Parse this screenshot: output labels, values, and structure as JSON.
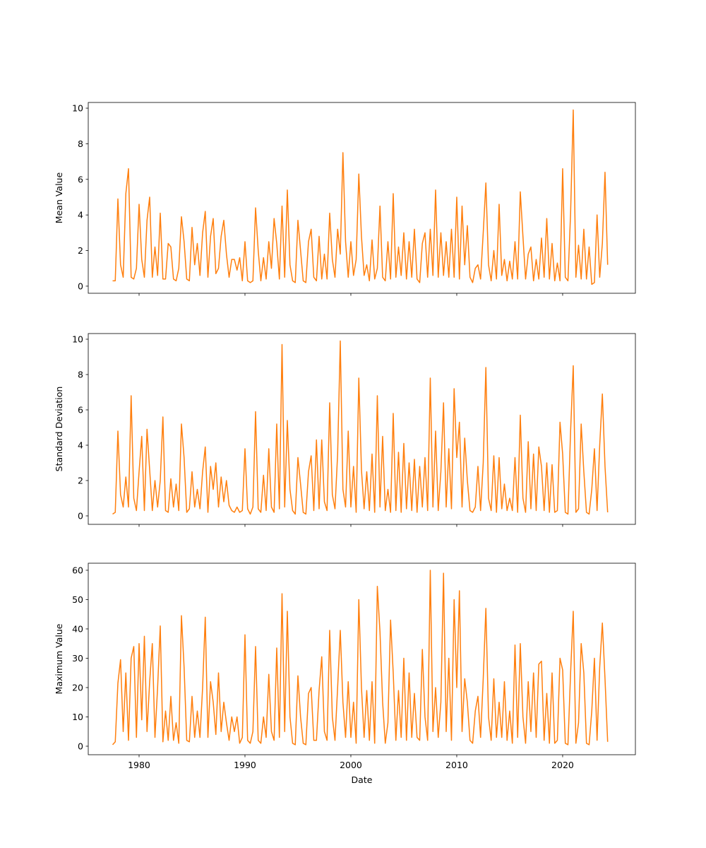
{
  "chart_data": [
    {
      "type": "line",
      "ylabel": "Mean Value",
      "x": [
        1977.5,
        1977.75,
        1978,
        1978.25,
        1978.5,
        1978.75,
        1979,
        1979.25,
        1979.5,
        1979.75,
        1980,
        1980.25,
        1980.5,
        1980.75,
        1981,
        1981.25,
        1981.5,
        1981.75,
        1982,
        1982.25,
        1982.5,
        1982.75,
        1983,
        1983.25,
        1983.5,
        1983.75,
        1984,
        1984.25,
        1984.5,
        1984.75,
        1985,
        1985.25,
        1985.5,
        1985.75,
        1986,
        1986.25,
        1986.5,
        1986.75,
        1987,
        1987.25,
        1987.5,
        1987.75,
        1988,
        1988.25,
        1988.5,
        1988.75,
        1989,
        1989.25,
        1989.5,
        1989.75,
        1990,
        1990.25,
        1990.5,
        1990.75,
        1991,
        1991.25,
        1991.5,
        1991.75,
        1992,
        1992.25,
        1992.5,
        1992.75,
        1993,
        1993.25,
        1993.5,
        1993.75,
        1994,
        1994.25,
        1994.5,
        1994.75,
        1995,
        1995.25,
        1995.5,
        1995.75,
        1996,
        1996.25,
        1996.5,
        1996.75,
        1997,
        1997.25,
        1997.5,
        1997.75,
        1998,
        1998.25,
        1998.5,
        1998.75,
        1999,
        1999.25,
        1999.5,
        1999.75,
        2000,
        2000.25,
        2000.5,
        2000.75,
        2001,
        2001.25,
        2001.5,
        2001.75,
        2002,
        2002.25,
        2002.5,
        2002.75,
        2003,
        2003.25,
        2003.5,
        2003.75,
        2004,
        2004.25,
        2004.5,
        2004.75,
        2005,
        2005.25,
        2005.5,
        2005.75,
        2006,
        2006.25,
        2006.5,
        2006.75,
        2007,
        2007.25,
        2007.5,
        2007.75,
        2008,
        2008.25,
        2008.5,
        2008.75,
        2009,
        2009.25,
        2009.5,
        2009.75,
        2010,
        2010.25,
        2010.5,
        2010.75,
        2011,
        2011.25,
        2011.5,
        2011.75,
        2012,
        2012.25,
        2012.5,
        2012.75,
        2013,
        2013.25,
        2013.5,
        2013.75,
        2014,
        2014.25,
        2014.5,
        2014.75,
        2015,
        2015.25,
        2015.5,
        2015.75,
        2016,
        2016.25,
        2016.5,
        2016.75,
        2017,
        2017.25,
        2017.5,
        2017.75,
        2018,
        2018.25,
        2018.5,
        2018.75,
        2019,
        2019.25,
        2019.5,
        2019.75,
        2020,
        2020.25,
        2020.5,
        2020.75,
        2021,
        2021.25,
        2021.5,
        2021.75,
        2022,
        2022.25,
        2022.5,
        2022.75,
        2023,
        2023.25,
        2023.5,
        2023.75,
        2024,
        2024.25
      ],
      "values": [
        0.3,
        0.3,
        4.9,
        1.2,
        0.5,
        5.2,
        6.6,
        0.5,
        0.4,
        1.0,
        4.6,
        1.5,
        0.5,
        3.7,
        5.0,
        0.5,
        2.2,
        0.6,
        4.1,
        0.4,
        0.4,
        2.4,
        2.2,
        0.4,
        0.3,
        1.0,
        3.9,
        2.5,
        0.4,
        0.3,
        3.3,
        1.2,
        2.4,
        0.6,
        3.0,
        4.2,
        0.5,
        2.8,
        3.8,
        0.7,
        1.0,
        2.8,
        3.7,
        1.8,
        0.5,
        1.5,
        1.5,
        0.9,
        1.6,
        0.3,
        2.5,
        0.3,
        0.2,
        0.3,
        4.4,
        2.0,
        0.3,
        1.6,
        0.4,
        2.5,
        1.0,
        3.8,
        2.4,
        0.4,
        4.5,
        0.5,
        5.4,
        1.2,
        0.3,
        0.2,
        3.7,
        2.0,
        0.3,
        0.2,
        2.5,
        3.2,
        0.5,
        0.3,
        2.8,
        0.4,
        1.8,
        0.4,
        4.1,
        1.5,
        0.5,
        3.2,
        1.8,
        7.5,
        2.5,
        0.5,
        2.5,
        0.6,
        1.5,
        6.3,
        2.8,
        0.6,
        1.2,
        0.3,
        2.6,
        0.4,
        1.0,
        4.5,
        0.5,
        0.3,
        2.5,
        0.4,
        5.2,
        0.5,
        2.2,
        0.6,
        3.0,
        0.4,
        2.5,
        0.5,
        3.2,
        0.4,
        0.2,
        2.4,
        3.0,
        0.5,
        3.2,
        0.6,
        5.4,
        0.5,
        3.0,
        0.6,
        2.5,
        0.5,
        3.2,
        0.5,
        5.0,
        0.4,
        4.5,
        1.2,
        3.4,
        0.5,
        0.2,
        1.0,
        1.2,
        0.4,
        3.0,
        5.8,
        1.2,
        0.3,
        2.0,
        0.4,
        4.6,
        0.6,
        1.5,
        0.3,
        1.4,
        0.4,
        2.5,
        0.4,
        5.3,
        2.8,
        0.4,
        1.8,
        2.2,
        0.3,
        1.5,
        0.4,
        2.7,
        0.5,
        3.8,
        0.4,
        2.4,
        0.3,
        1.3,
        0.3,
        6.6,
        0.5,
        0.3,
        4.1,
        9.9,
        0.5,
        2.3,
        0.4,
        3.2,
        0.4,
        2.2,
        0.1,
        0.2,
        4.0,
        0.5,
        2.4,
        6.4,
        1.2
      ],
      "color": "#ff7f0e",
      "xlim": [
        1975.2,
        2026.87
      ],
      "xticks": [
        1980,
        1990,
        2000,
        2010,
        2020
      ],
      "ylim": [
        -0.4,
        10.32
      ],
      "yticks": [
        0,
        2,
        4,
        6,
        8,
        10
      ]
    },
    {
      "type": "line",
      "ylabel": "Standard Deviation",
      "x": [
        1977.5,
        1977.75,
        1978,
        1978.25,
        1978.5,
        1978.75,
        1979,
        1979.25,
        1979.5,
        1979.75,
        1980,
        1980.25,
        1980.5,
        1980.75,
        1981,
        1981.25,
        1981.5,
        1981.75,
        1982,
        1982.25,
        1982.5,
        1982.75,
        1983,
        1983.25,
        1983.5,
        1983.75,
        1984,
        1984.25,
        1984.5,
        1984.75,
        1985,
        1985.25,
        1985.5,
        1985.75,
        1986,
        1986.25,
        1986.5,
        1986.75,
        1987,
        1987.25,
        1987.5,
        1987.75,
        1988,
        1988.25,
        1988.5,
        1988.75,
        1989,
        1989.25,
        1989.5,
        1989.75,
        1990,
        1990.25,
        1990.5,
        1990.75,
        1991,
        1991.25,
        1991.5,
        1991.75,
        1992,
        1992.25,
        1992.5,
        1992.75,
        1993,
        1993.25,
        1993.5,
        1993.75,
        1994,
        1994.25,
        1994.5,
        1994.75,
        1995,
        1995.25,
        1995.5,
        1995.75,
        1996,
        1996.25,
        1996.5,
        1996.75,
        1997,
        1997.25,
        1997.5,
        1997.75,
        1998,
        1998.25,
        1998.5,
        1998.75,
        1999,
        1999.25,
        1999.5,
        1999.75,
        2000,
        2000.25,
        2000.5,
        2000.75,
        2001,
        2001.25,
        2001.5,
        2001.75,
        2002,
        2002.25,
        2002.5,
        2002.75,
        2003,
        2003.25,
        2003.5,
        2003.75,
        2004,
        2004.25,
        2004.5,
        2004.75,
        2005,
        2005.25,
        2005.5,
        2005.75,
        2006,
        2006.25,
        2006.5,
        2006.75,
        2007,
        2007.25,
        2007.5,
        2007.75,
        2008,
        2008.25,
        2008.5,
        2008.75,
        2009,
        2009.25,
        2009.5,
        2009.75,
        2010,
        2010.25,
        2010.5,
        2010.75,
        2011,
        2011.25,
        2011.5,
        2011.75,
        2012,
        2012.25,
        2012.5,
        2012.75,
        2013,
        2013.25,
        2013.5,
        2013.75,
        2014,
        2014.25,
        2014.5,
        2014.75,
        2015,
        2015.25,
        2015.5,
        2015.75,
        2016,
        2016.25,
        2016.5,
        2016.75,
        2017,
        2017.25,
        2017.5,
        2017.75,
        2018,
        2018.25,
        2018.5,
        2018.75,
        2019,
        2019.25,
        2019.5,
        2019.75,
        2020,
        2020.25,
        2020.5,
        2020.75,
        2021,
        2021.25,
        2021.5,
        2021.75,
        2022,
        2022.25,
        2022.5,
        2022.75,
        2023,
        2023.25,
        2023.5,
        2023.75,
        2024,
        2024.25
      ],
      "values": [
        0.1,
        0.2,
        4.8,
        1.2,
        0.5,
        2.2,
        0.5,
        6.8,
        1.0,
        0.3,
        2.5,
        4.5,
        0.3,
        4.9,
        2.6,
        0.3,
        2.0,
        0.5,
        2.0,
        5.6,
        0.3,
        0.2,
        2.1,
        0.5,
        1.8,
        0.3,
        5.2,
        3.3,
        0.2,
        0.4,
        2.5,
        0.5,
        1.5,
        0.4,
        2.5,
        3.9,
        0.2,
        2.8,
        1.5,
        3.0,
        0.5,
        2.2,
        0.8,
        2.0,
        0.6,
        0.3,
        0.2,
        0.5,
        0.2,
        0.3,
        3.8,
        0.4,
        0.1,
        0.5,
        5.9,
        0.4,
        0.2,
        2.3,
        0.3,
        3.8,
        0.5,
        0.2,
        5.2,
        0.4,
        9.7,
        0.5,
        5.4,
        1.5,
        0.3,
        0.1,
        3.3,
        1.8,
        0.2,
        0.1,
        2.5,
        3.4,
        0.3,
        4.3,
        0.4,
        4.3,
        0.8,
        0.3,
        6.4,
        1.2,
        0.4,
        3.5,
        9.9,
        1.5,
        0.5,
        4.8,
        0.5,
        2.8,
        0.2,
        7.8,
        2.6,
        0.4,
        2.5,
        0.3,
        3.5,
        0.2,
        6.8,
        0.5,
        4.5,
        0.3,
        1.5,
        0.2,
        5.8,
        0.3,
        3.6,
        0.2,
        4.1,
        0.4,
        3.0,
        0.3,
        3.2,
        0.2,
        2.8,
        0.5,
        3.3,
        0.3,
        7.8,
        0.5,
        4.8,
        0.3,
        2.5,
        6.4,
        0.5,
        3.8,
        0.4,
        7.2,
        3.3,
        5.3,
        0.5,
        4.4,
        2.0,
        0.3,
        0.2,
        0.5,
        2.8,
        0.3,
        3.0,
        8.4,
        1.0,
        0.3,
        3.4,
        0.2,
        3.3,
        0.4,
        1.8,
        0.3,
        1.0,
        0.3,
        3.3,
        0.2,
        5.7,
        1.0,
        0.2,
        4.2,
        0.4,
        3.5,
        0.3,
        3.9,
        2.8,
        0.3,
        3.0,
        0.2,
        2.9,
        0.2,
        0.3,
        5.3,
        3.5,
        0.2,
        0.1,
        4.8,
        8.5,
        0.2,
        0.4,
        5.2,
        2.5,
        0.2,
        0.1,
        1.5,
        3.8,
        0.3,
        4.0,
        6.9,
        2.8,
        0.2
      ],
      "color": "#ff7f0e",
      "xlim": [
        1975.2,
        2026.87
      ],
      "xticks": [
        1980,
        1990,
        2000,
        2010,
        2020
      ],
      "ylim": [
        -0.48,
        10.32
      ],
      "yticks": [
        0,
        2,
        4,
        6,
        8,
        10
      ]
    },
    {
      "type": "line",
      "ylabel": "Maximum Value",
      "xlabel": "Date",
      "x": [
        1977.5,
        1977.75,
        1978,
        1978.25,
        1978.5,
        1978.75,
        1979,
        1979.25,
        1979.5,
        1979.75,
        1980,
        1980.25,
        1980.5,
        1980.75,
        1981,
        1981.25,
        1981.5,
        1981.75,
        1982,
        1982.25,
        1982.5,
        1982.75,
        1983,
        1983.25,
        1983.5,
        1983.75,
        1984,
        1984.25,
        1984.5,
        1984.75,
        1985,
        1985.25,
        1985.5,
        1985.75,
        1986,
        1986.25,
        1986.5,
        1986.75,
        1987,
        1987.25,
        1987.5,
        1987.75,
        1988,
        1988.25,
        1988.5,
        1988.75,
        1989,
        1989.25,
        1989.5,
        1989.75,
        1990,
        1990.25,
        1990.5,
        1990.75,
        1991,
        1991.25,
        1991.5,
        1991.75,
        1992,
        1992.25,
        1992.5,
        1992.75,
        1993,
        1993.25,
        1993.5,
        1993.75,
        1994,
        1994.25,
        1994.5,
        1994.75,
        1995,
        1995.25,
        1995.5,
        1995.75,
        1996,
        1996.25,
        1996.5,
        1996.75,
        1997,
        1997.25,
        1997.5,
        1997.75,
        1998,
        1998.25,
        1998.5,
        1998.75,
        1999,
        1999.25,
        1999.5,
        1999.75,
        2000,
        2000.25,
        2000.5,
        2000.75,
        2001,
        2001.25,
        2001.5,
        2001.75,
        2002,
        2002.25,
        2002.5,
        2002.75,
        2003,
        2003.25,
        2003.5,
        2003.75,
        2004,
        2004.25,
        2004.5,
        2004.75,
        2005,
        2005.25,
        2005.5,
        2005.75,
        2006,
        2006.25,
        2006.5,
        2006.75,
        2007,
        2007.25,
        2007.5,
        2007.75,
        2008,
        2008.25,
        2008.5,
        2008.75,
        2009,
        2009.25,
        2009.5,
        2009.75,
        2010,
        2010.25,
        2010.5,
        2010.75,
        2011,
        2011.25,
        2011.5,
        2011.75,
        2012,
        2012.25,
        2012.5,
        2012.75,
        2013,
        2013.25,
        2013.5,
        2013.75,
        2014,
        2014.25,
        2014.5,
        2014.75,
        2015,
        2015.25,
        2015.5,
        2015.75,
        2016,
        2016.25,
        2016.5,
        2016.75,
        2017,
        2017.25,
        2017.5,
        2017.75,
        2018,
        2018.25,
        2018.5,
        2018.75,
        2019,
        2019.25,
        2019.5,
        2019.75,
        2020,
        2020.25,
        2020.5,
        2020.75,
        2021,
        2021.25,
        2021.5,
        2021.75,
        2022,
        2022.25,
        2022.5,
        2022.75,
        2023,
        2023.25,
        2023.5,
        2023.75,
        2024,
        2024.25
      ],
      "values": [
        0.5,
        1.5,
        21.5,
        29.5,
        5.0,
        25.0,
        2.0,
        30.0,
        34.0,
        3.0,
        35.0,
        9.0,
        37.5,
        5.0,
        22.0,
        35.0,
        3.0,
        20.0,
        41.0,
        1.5,
        12.0,
        2.0,
        17.0,
        2.0,
        8.0,
        1.0,
        44.5,
        27.0,
        2.0,
        1.5,
        17.0,
        3.0,
        12.0,
        3.0,
        20.0,
        44.0,
        3.0,
        22.0,
        15.0,
        4.0,
        25.0,
        5.0,
        15.0,
        8.0,
        2.0,
        10.0,
        5.0,
        10.0,
        1.0,
        3.0,
        38.0,
        2.0,
        1.0,
        5.0,
        34.0,
        2.0,
        1.0,
        10.0,
        3.0,
        24.5,
        5.0,
        2.0,
        33.5,
        3.0,
        52.0,
        5.0,
        46.0,
        10.0,
        1.0,
        0.5,
        24.0,
        10.0,
        1.0,
        0.5,
        18.0,
        20.0,
        2.0,
        2.0,
        19.0,
        30.5,
        5.0,
        2.0,
        39.5,
        10.0,
        2.0,
        20.0,
        39.5,
        15.0,
        3.0,
        22.0,
        3.0,
        15.0,
        1.0,
        50.0,
        20.0,
        3.0,
        19.0,
        2.0,
        22.0,
        1.0,
        54.5,
        39.0,
        15.0,
        1.0,
        8.0,
        43.0,
        25.0,
        2.0,
        19.0,
        3.0,
        30.0,
        2.0,
        25.0,
        3.0,
        18.0,
        3.0,
        2.0,
        33.0,
        10.0,
        2.0,
        60.0,
        5.0,
        20.0,
        3.0,
        15.0,
        59.0,
        5.0,
        30.0,
        2.0,
        50.0,
        20.0,
        53.0,
        5.0,
        23.0,
        15.0,
        2.0,
        1.0,
        12.0,
        17.0,
        3.0,
        23.0,
        47.0,
        10.0,
        2.0,
        23.0,
        3.0,
        15.0,
        3.0,
        22.0,
        2.0,
        12.0,
        1.0,
        34.5,
        3.0,
        35.0,
        10.0,
        1.0,
        22.0,
        5.0,
        25.0,
        3.0,
        28.0,
        29.0,
        2.0,
        18.0,
        1.0,
        25.0,
        1.0,
        2.0,
        30.0,
        26.0,
        1.0,
        0.5,
        25.0,
        46.0,
        1.0,
        8.0,
        35.0,
        25.0,
        1.0,
        0.5,
        12.0,
        30.0,
        2.0,
        27.0,
        42.0,
        23.0,
        1.5
      ],
      "color": "#ff7f0e",
      "xlim": [
        1975.2,
        2026.87
      ],
      "xticks": [
        1980,
        1990,
        2000,
        2010,
        2020
      ],
      "ylim": [
        -2.9,
        62.4
      ],
      "yticks": [
        0,
        10,
        20,
        30,
        40,
        50,
        60
      ]
    }
  ]
}
